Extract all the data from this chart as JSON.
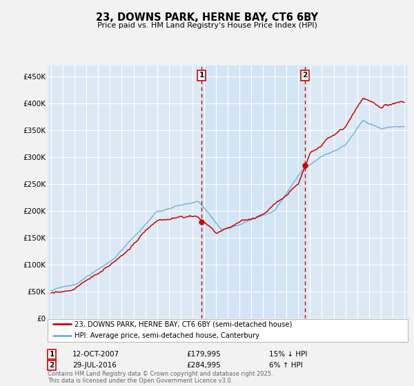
{
  "title": "23, DOWNS PARK, HERNE BAY, CT6 6BY",
  "subtitle": "Price paid vs. HM Land Registry's House Price Index (HPI)",
  "ylabel_ticks": [
    "£0",
    "£50K",
    "£100K",
    "£150K",
    "£200K",
    "£250K",
    "£300K",
    "£350K",
    "£400K",
    "£450K"
  ],
  "ytick_values": [
    0,
    50000,
    100000,
    150000,
    200000,
    250000,
    300000,
    350000,
    400000,
    450000
  ],
  "ylim": [
    0,
    470000
  ],
  "year_start": 1995,
  "year_end": 2025,
  "hpi_color": "#6baed6",
  "price_color": "#cc0000",
  "dashed_line_color": "#cc0000",
  "shaded_region_color": "#d0e4f5",
  "marker1_year": 2007.78,
  "marker1_price": 179995,
  "marker2_year": 2016.57,
  "marker2_price": 284995,
  "annotation1": {
    "label": "1",
    "date": "12-OCT-2007",
    "price": "£179,995",
    "pct": "15% ↓ HPI"
  },
  "annotation2": {
    "label": "2",
    "date": "29-JUL-2016",
    "price": "£284,995",
    "pct": "6% ↑ HPI"
  },
  "legend_line1": "23, DOWNS PARK, HERNE BAY, CT6 6BY (semi-detached house)",
  "legend_line2": "HPI: Average price, semi-detached house, Canterbury",
  "footer": "Contains HM Land Registry data © Crown copyright and database right 2025.\nThis data is licensed under the Open Government Licence v3.0.",
  "plot_bg_color": "#dce9f5",
  "fig_bg_color": "#f2f2f2",
  "grid_color": "#ffffff",
  "label_color": "#cc0000",
  "box_label_color": "#cc0000"
}
